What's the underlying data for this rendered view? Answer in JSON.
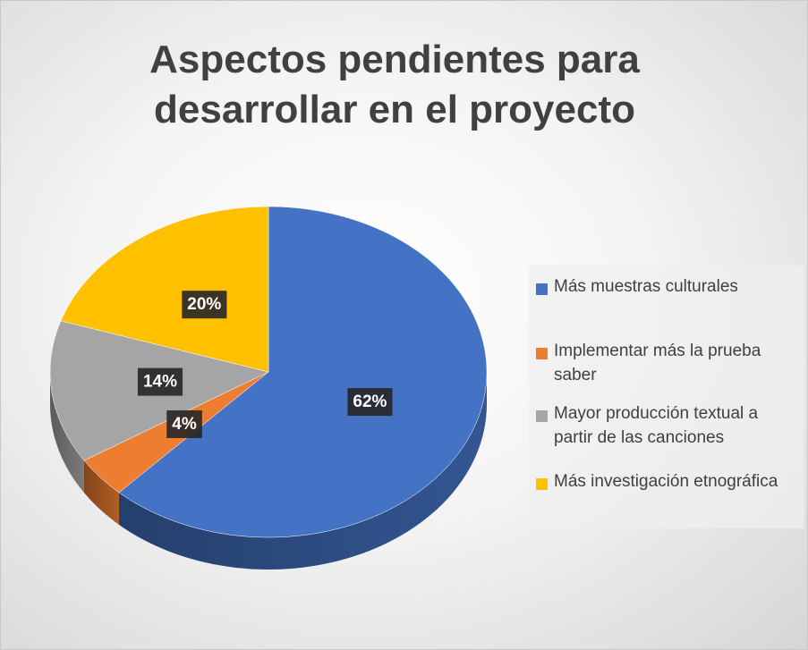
{
  "chart_data": {
    "type": "pie",
    "title": "Aspectos pendientes para desarrollar en el proyecto",
    "categories": [
      "Más muestras culturales",
      "Implementar más la prueba saber",
      "Mayor producción textual a partir de las canciones",
      "Más investigación etnográfica"
    ],
    "values": [
      62,
      4,
      14,
      20
    ],
    "value_labels": [
      "62%",
      "4%",
      "14%",
      "20%"
    ],
    "colors": [
      "#4472c4",
      "#ed7d31",
      "#a5a5a5",
      "#ffc000"
    ],
    "legend": "right"
  }
}
